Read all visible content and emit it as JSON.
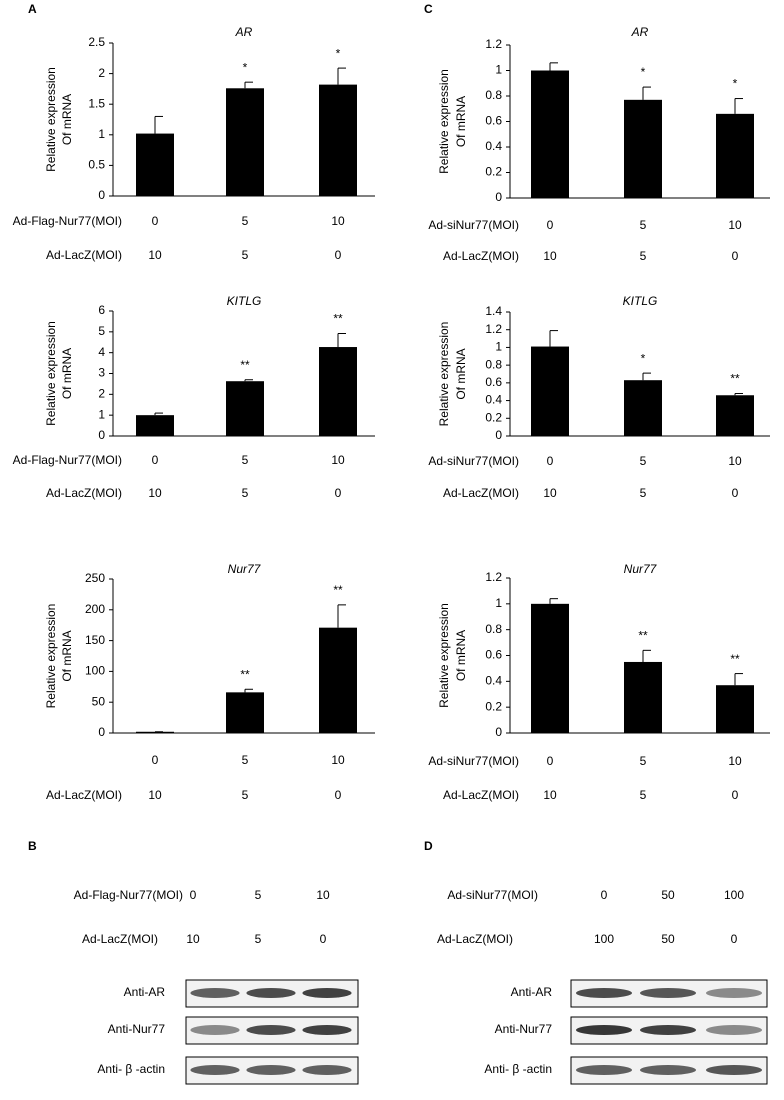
{
  "panel_labels": [
    "A",
    "C",
    "B",
    "D"
  ],
  "chart_data": [
    {
      "type": "bar",
      "title": "AR",
      "ylabel": [
        "Relative expression",
        "Of mRNA"
      ],
      "values": [
        1.02,
        1.76,
        1.82
      ],
      "errors": [
        0.28,
        0.1,
        0.27
      ],
      "annotations": [
        null,
        "*",
        "*"
      ],
      "color": "#000000",
      "ylim": [
        0,
        2.5
      ],
      "yticks": [
        0,
        0.5,
        1,
        1.5,
        2,
        2.5
      ],
      "treatments": [
        {
          "name": "Ad-Flag-Nur77(MOI)",
          "values": [
            0,
            5,
            10
          ]
        },
        {
          "name": "Ad-LacZ(MOI)",
          "values": [
            10,
            5,
            0
          ]
        }
      ]
    },
    {
      "type": "bar",
      "title": "KITLG",
      "ylabel": [
        "Relative expression",
        "Of mRNA"
      ],
      "values": [
        1.0,
        2.63,
        4.27
      ],
      "errors": [
        0.1,
        0.07,
        0.65
      ],
      "annotations": [
        null,
        "**",
        "**"
      ],
      "color": "#000000",
      "ylim": [
        0,
        6
      ],
      "yticks": [
        0,
        1,
        2,
        3,
        4,
        5,
        6
      ],
      "treatments": [
        {
          "name": "Ad-Flag-Nur77(MOI)",
          "values": [
            0,
            5,
            10
          ]
        },
        {
          "name": "Ad-LacZ(MOI)",
          "values": [
            10,
            5,
            0
          ]
        }
      ]
    },
    {
      "type": "bar",
      "title": "Nur77",
      "ylabel": [
        "Relative expression",
        "Of mRNA"
      ],
      "values": [
        2,
        66,
        171
      ],
      "errors": [
        0,
        5,
        37
      ],
      "annotations": [
        null,
        "**",
        "**"
      ],
      "color": "#000000",
      "ylim": [
        0,
        250
      ],
      "yticks": [
        0,
        50,
        100,
        150,
        200,
        250
      ],
      "treatments": [
        {
          "values": [
            0,
            5,
            10
          ]
        },
        {
          "name": "Ad-LacZ(MOI)",
          "values": [
            10,
            5,
            0
          ]
        }
      ]
    },
    {
      "type": "bar",
      "title": "AR",
      "ylabel": [
        "Relative expression",
        "Of mRNA"
      ],
      "values": [
        1.0,
        0.77,
        0.66
      ],
      "errors": [
        0.06,
        0.1,
        0.12
      ],
      "annotations": [
        null,
        "*",
        "*"
      ],
      "color": "#000000",
      "ylim": [
        0,
        1.2
      ],
      "yticks": [
        0,
        0.2,
        0.4,
        0.6,
        0.8,
        1,
        1.2
      ],
      "treatments": [
        {
          "name": "Ad-siNur77(MOI)",
          "values": [
            0,
            5,
            10
          ]
        },
        {
          "name": "Ad-LacZ(MOI)",
          "values": [
            10,
            5,
            0
          ]
        }
      ]
    },
    {
      "type": "bar",
      "title": "KITLG",
      "ylabel": [
        "Relative expression",
        "Of mRNA"
      ],
      "values": [
        1.01,
        0.63,
        0.46
      ],
      "errors": [
        0.18,
        0.08,
        0.02
      ],
      "annotations": [
        null,
        "*",
        "**"
      ],
      "color": "#000000",
      "ylim": [
        0,
        1.4
      ],
      "yticks": [
        0,
        0.2,
        0.4,
        0.6,
        0.8,
        1,
        1.2,
        1.4
      ],
      "treatments": [
        {
          "name": "Ad-siNur77(MOI)",
          "values": [
            0,
            5,
            10
          ]
        },
        {
          "name": "Ad-LacZ(MOI)",
          "values": [
            10,
            5,
            0
          ]
        }
      ]
    },
    {
      "type": "bar",
      "title": "Nur77",
      "ylabel": [
        "Relative expression",
        "Of mRNA"
      ],
      "values": [
        1.0,
        0.55,
        0.37
      ],
      "errors": [
        0.04,
        0.09,
        0.09
      ],
      "annotations": [
        null,
        "**",
        "**"
      ],
      "color": "#000000",
      "ylim": [
        0,
        1.2
      ],
      "yticks": [
        0,
        0.2,
        0.4,
        0.6,
        0.8,
        1,
        1.2
      ],
      "treatments": [
        {
          "name": "Ad-siNur77(MOI)",
          "values": [
            0,
            5,
            10
          ]
        },
        {
          "name": "Ad-LacZ(MOI)",
          "values": [
            10,
            5,
            0
          ]
        }
      ]
    }
  ],
  "blots": [
    {
      "treatments": [
        {
          "name": "Ad-Flag-Nur77(MOI)",
          "values": [
            0,
            5,
            10
          ]
        },
        {
          "name": "Ad-LacZ(MOI)",
          "values": [
            10,
            5,
            0
          ]
        }
      ],
      "bands": [
        "Anti-AR",
        "Anti-Nur77",
        "Anti- β -actin"
      ]
    },
    {
      "treatments": [
        {
          "name": "Ad-siNur77(MOI)",
          "values": [
            0,
            50,
            100
          ]
        },
        {
          "name": "Ad-LacZ(MOI)",
          "values": [
            100,
            50,
            0
          ]
        }
      ],
      "bands": [
        "Anti-AR",
        "Anti-Nur77",
        "Anti- β -actin"
      ]
    }
  ]
}
